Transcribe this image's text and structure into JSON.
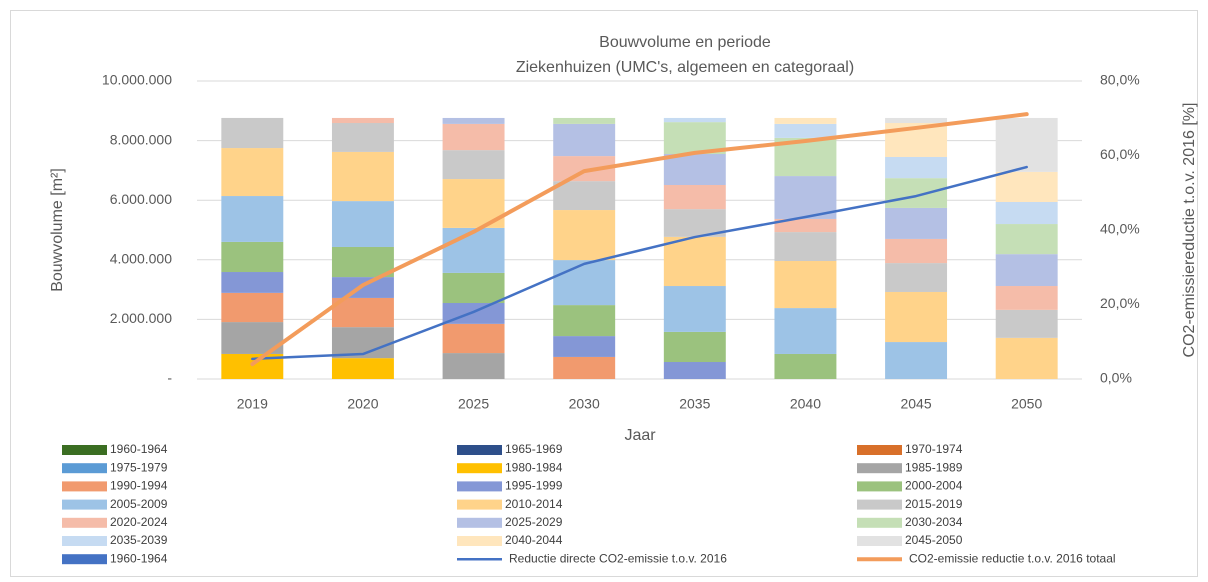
{
  "chart_data": {
    "type": "bar",
    "title": "Bouwvolume en periode",
    "subtitle": "Ziekenhuizen (UMC's, algemeen en categoraal)",
    "x_label": "Jaar",
    "y_label": "Bouwvolume [m²]",
    "y2_label": "CO2-emissiereductie t.o.v. 2016 [%]",
    "stacked": true,
    "grid": true,
    "categories": [
      "2019",
      "2020",
      "2025",
      "2030",
      "2035",
      "2040",
      "2045",
      "2050"
    ],
    "ylim": [
      0,
      10000000
    ],
    "yticks": [
      {
        "value": 0,
        "label": "-"
      },
      {
        "value": 2000000,
        "label": "2.000.000"
      },
      {
        "value": 4000000,
        "label": "4.000.000"
      },
      {
        "value": 6000000,
        "label": "6.000.000"
      },
      {
        "value": 8000000,
        "label": "8.000.000"
      },
      {
        "value": 10000000,
        "label": "10.000.000"
      }
    ],
    "y2lim": [
      0,
      80
    ],
    "y2ticks": [
      {
        "value": 0,
        "label": "0,0%"
      },
      {
        "value": 20,
        "label": "20,0%"
      },
      {
        "value": 40,
        "label": "40,0%"
      },
      {
        "value": 60,
        "label": "60,0%"
      },
      {
        "value": 80,
        "label": "80,0%"
      }
    ],
    "series": [
      {
        "name": "1960-1964",
        "color": "#3b6e22",
        "values": [
          0,
          0,
          0,
          0,
          0,
          0,
          0,
          0
        ]
      },
      {
        "name": "1965-1969",
        "color": "#2e4f8a",
        "values": [
          0,
          0,
          0,
          0,
          0,
          0,
          0,
          0
        ]
      },
      {
        "name": "1970-1974",
        "color": "#d8702a",
        "values": [
          0,
          0,
          0,
          0,
          0,
          0,
          0,
          0
        ]
      },
      {
        "name": "1975-1979",
        "color": "#5b9bd5",
        "values": [
          0,
          0,
          0,
          0,
          0,
          0,
          0,
          0
        ]
      },
      {
        "name": "1980-1984",
        "color": "#ffc000",
        "values": [
          840000,
          700000,
          0,
          0,
          0,
          0,
          0,
          0
        ]
      },
      {
        "name": "1985-1989",
        "color": "#a5a5a5",
        "values": [
          1070000,
          1040000,
          870000,
          0,
          0,
          0,
          0,
          0
        ]
      },
      {
        "name": "1990-1994",
        "color": "#f19a6e",
        "values": [
          980000,
          980000,
          980000,
          740000,
          0,
          0,
          0,
          0
        ]
      },
      {
        "name": "1995-1999",
        "color": "#8497d6",
        "values": [
          700000,
          700000,
          700000,
          700000,
          570000,
          0,
          0,
          0
        ]
      },
      {
        "name": "2000-2004",
        "color": "#9bc27e",
        "values": [
          1010000,
          1010000,
          1010000,
          1040000,
          1010000,
          840000,
          0,
          0
        ]
      },
      {
        "name": "2005-2009",
        "color": "#9dc3e6",
        "values": [
          1540000,
          1540000,
          1510000,
          1510000,
          1540000,
          1540000,
          1240000,
          0
        ]
      },
      {
        "name": "2010-2014",
        "color": "#ffd38a",
        "values": [
          1610000,
          1650000,
          1640000,
          1680000,
          1650000,
          1580000,
          1680000,
          1380000
        ]
      },
      {
        "name": "2015-2019",
        "color": "#c9c9c9",
        "values": [
          1010000,
          970000,
          970000,
          970000,
          930000,
          970000,
          970000,
          940000
        ]
      },
      {
        "name": "2020-2024",
        "color": "#f5bca9",
        "values": [
          0,
          170000,
          880000,
          840000,
          810000,
          440000,
          810000,
          800000
        ]
      },
      {
        "name": "2025-2029",
        "color": "#b4c0e4",
        "values": [
          0,
          0,
          200000,
          1080000,
          1040000,
          1440000,
          1040000,
          1070000
        ]
      },
      {
        "name": "2030-2034",
        "color": "#c5dfb6",
        "values": [
          0,
          0,
          0,
          200000,
          1070000,
          1280000,
          1000000,
          1010000
        ]
      },
      {
        "name": "2035-2039",
        "color": "#c6dbf2",
        "values": [
          0,
          0,
          0,
          0,
          140000,
          470000,
          710000,
          740000
        ]
      },
      {
        "name": "2040-2044",
        "color": "#ffe6bd",
        "values": [
          0,
          0,
          0,
          0,
          0,
          200000,
          1140000,
          1010000
        ]
      },
      {
        "name": "2045-2050",
        "color": "#e2e2e2",
        "values": [
          0,
          0,
          0,
          0,
          0,
          0,
          170000,
          1810000
        ]
      },
      {
        "name": "1960-1964",
        "color": "#4472c4",
        "values": [
          0,
          0,
          0,
          0,
          0,
          0,
          0,
          0
        ]
      },
      {
        "name": "Reductie directe CO2-emissie t.o.v. 2016",
        "color": "#4472c4",
        "type": "line",
        "axis": "y2",
        "values": [
          5.4,
          6.7,
          18.0,
          30.9,
          38.1,
          43.5,
          49.1,
          56.9
        ]
      },
      {
        "name": "CO2-emissie reductie t.o.v. 2016 totaal",
        "color": "#f39c5b",
        "type": "line",
        "axis": "y2",
        "values": [
          4.0,
          25.2,
          39.5,
          55.8,
          60.7,
          63.9,
          67.4,
          71.1
        ]
      }
    ]
  }
}
